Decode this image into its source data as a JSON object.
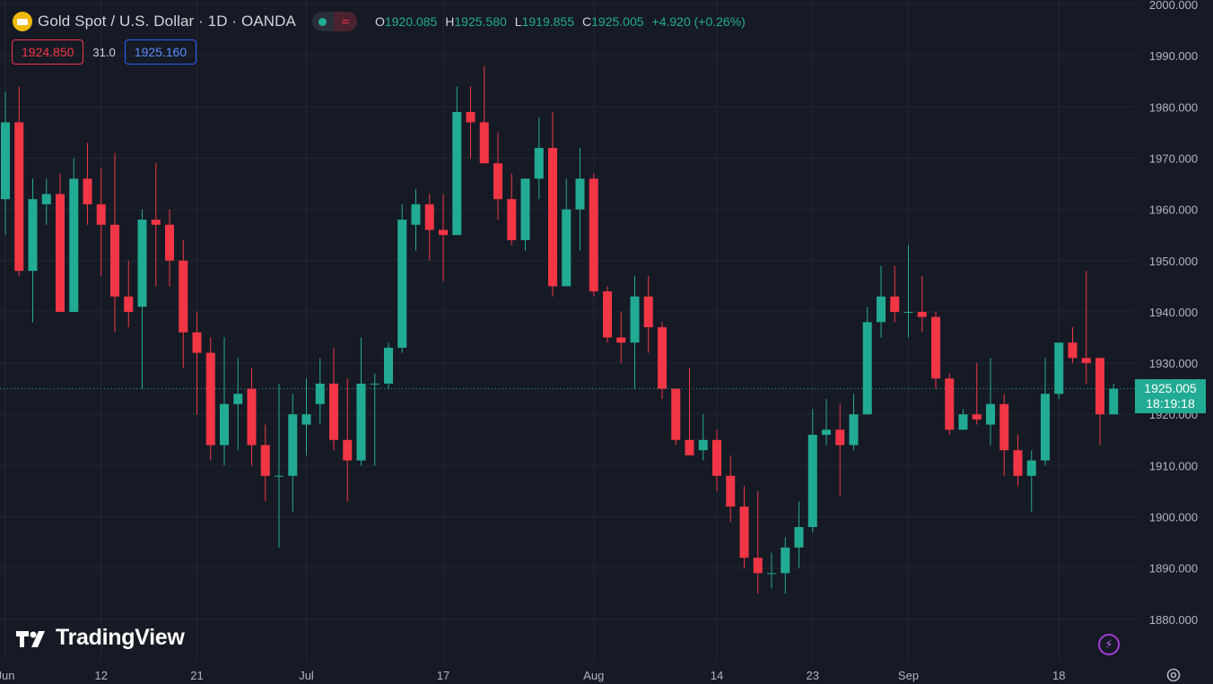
{
  "header": {
    "title": "Gold Spot / U.S. Dollar · 1D · OANDA",
    "symbol_icon": "gold-bar-icon",
    "ohlc": {
      "o_label": "O",
      "o_value": "1920.085",
      "h_label": "H",
      "h_value": "1925.580",
      "l_label": "L",
      "l_value": "1919.855",
      "c_label": "C",
      "c_value": "1925.005",
      "change": "+4.920 (+0.26%)"
    }
  },
  "trade": {
    "sell_price": "1924.850",
    "spread": "31.0",
    "buy_price": "1925.160"
  },
  "current_price": {
    "price": "1925.005",
    "countdown": "18:19:18"
  },
  "logo_text": "TradingView",
  "colors": {
    "background": "#161a25",
    "up": "#22ab94",
    "down": "#f23645",
    "grid": "#232733",
    "axis_text": "#b2b5be"
  },
  "chart_data": {
    "type": "candlestick",
    "symbol": "Gold Spot / U.S. Dollar",
    "interval": "1D",
    "y_axis": {
      "min": 1875,
      "max": 2000,
      "ticks": [
        "2000.000",
        "1990.000",
        "1980.000",
        "1970.000",
        "1960.000",
        "1950.000",
        "1940.000",
        "1930.000",
        "1920.000",
        "1910.000",
        "1900.000",
        "1890.000",
        "1880.000"
      ],
      "tick_values": [
        2000,
        1990,
        1980,
        1970,
        1960,
        1950,
        1940,
        1930,
        1920,
        1910,
        1900,
        1890,
        1880
      ]
    },
    "x_axis": {
      "labels": [
        "Jun",
        "12",
        "21",
        "Jul",
        "17",
        "Aug",
        "14",
        "23",
        "Sep",
        "18"
      ],
      "label_bar_index": [
        0,
        7,
        14,
        22,
        32,
        43,
        52,
        59,
        66,
        77
      ]
    },
    "candles": [
      {
        "o": 1962,
        "h": 1983,
        "l": 1955,
        "c": 1977
      },
      {
        "o": 1977,
        "h": 1984,
        "l": 1947,
        "c": 1948
      },
      {
        "o": 1948,
        "h": 1966,
        "l": 1938,
        "c": 1962
      },
      {
        "o": 1961,
        "h": 1966,
        "l": 1957,
        "c": 1963
      },
      {
        "o": 1963,
        "h": 1967,
        "l": 1940,
        "c": 1940
      },
      {
        "o": 1940,
        "h": 1970,
        "l": 1940,
        "c": 1966
      },
      {
        "o": 1966,
        "h": 1973,
        "l": 1957,
        "c": 1961
      },
      {
        "o": 1961,
        "h": 1968,
        "l": 1947,
        "c": 1957
      },
      {
        "o": 1957,
        "h": 1971,
        "l": 1936,
        "c": 1943
      },
      {
        "o": 1943,
        "h": 1950,
        "l": 1937,
        "c": 1940
      },
      {
        "o": 1941,
        "h": 1960,
        "l": 1925,
        "c": 1958
      },
      {
        "o": 1958,
        "h": 1969,
        "l": 1945,
        "c": 1957
      },
      {
        "o": 1957,
        "h": 1960,
        "l": 1945,
        "c": 1950
      },
      {
        "o": 1950,
        "h": 1954,
        "l": 1929,
        "c": 1936
      },
      {
        "o": 1936,
        "h": 1940,
        "l": 1920,
        "c": 1932
      },
      {
        "o": 1932,
        "h": 1935,
        "l": 1911,
        "c": 1914
      },
      {
        "o": 1914,
        "h": 1935,
        "l": 1910,
        "c": 1922
      },
      {
        "o": 1922,
        "h": 1931,
        "l": 1913,
        "c": 1924
      },
      {
        "o": 1925,
        "h": 1929,
        "l": 1910,
        "c": 1914
      },
      {
        "o": 1914,
        "h": 1918,
        "l": 1903,
        "c": 1908
      },
      {
        "o": 1908,
        "h": 1926,
        "l": 1894,
        "c": 1908
      },
      {
        "o": 1908,
        "h": 1924,
        "l": 1901,
        "c": 1920
      },
      {
        "o": 1918,
        "h": 1927,
        "l": 1912,
        "c": 1920
      },
      {
        "o": 1922,
        "h": 1931,
        "l": 1918,
        "c": 1926
      },
      {
        "o": 1926,
        "h": 1933,
        "l": 1913,
        "c": 1915
      },
      {
        "o": 1915,
        "h": 1927,
        "l": 1903,
        "c": 1911
      },
      {
        "o": 1911,
        "h": 1935,
        "l": 1910,
        "c": 1926
      },
      {
        "o": 1926,
        "h": 1928,
        "l": 1910,
        "c": 1926
      },
      {
        "o": 1926,
        "h": 1934,
        "l": 1925,
        "c": 1933
      },
      {
        "o": 1933,
        "h": 1961,
        "l": 1932,
        "c": 1958
      },
      {
        "o": 1957,
        "h": 1964,
        "l": 1952,
        "c": 1961
      },
      {
        "o": 1961,
        "h": 1963,
        "l": 1950,
        "c": 1956
      },
      {
        "o": 1956,
        "h": 1963,
        "l": 1946,
        "c": 1955
      },
      {
        "o": 1955,
        "h": 1984,
        "l": 1955,
        "c": 1979
      },
      {
        "o": 1979,
        "h": 1984,
        "l": 1970,
        "c": 1977
      },
      {
        "o": 1977,
        "h": 1988,
        "l": 1969,
        "c": 1969
      },
      {
        "o": 1969,
        "h": 1975,
        "l": 1958,
        "c": 1962
      },
      {
        "o": 1962,
        "h": 1967,
        "l": 1953,
        "c": 1954
      },
      {
        "o": 1954,
        "h": 1966,
        "l": 1952,
        "c": 1966
      },
      {
        "o": 1966,
        "h": 1978,
        "l": 1962,
        "c": 1972
      },
      {
        "o": 1972,
        "h": 1979,
        "l": 1943,
        "c": 1945
      },
      {
        "o": 1945,
        "h": 1966,
        "l": 1945,
        "c": 1960
      },
      {
        "o": 1960,
        "h": 1972,
        "l": 1952,
        "c": 1966
      },
      {
        "o": 1966,
        "h": 1967,
        "l": 1943,
        "c": 1944
      },
      {
        "o": 1944,
        "h": 1945,
        "l": 1934,
        "c": 1935
      },
      {
        "o": 1935,
        "h": 1940,
        "l": 1930,
        "c": 1934
      },
      {
        "o": 1934,
        "h": 1947,
        "l": 1925,
        "c": 1943
      },
      {
        "o": 1943,
        "h": 1947,
        "l": 1932,
        "c": 1937
      },
      {
        "o": 1937,
        "h": 1938,
        "l": 1923,
        "c": 1925
      },
      {
        "o": 1925,
        "h": 1925,
        "l": 1914,
        "c": 1915
      },
      {
        "o": 1915,
        "h": 1929,
        "l": 1912,
        "c": 1912
      },
      {
        "o": 1913,
        "h": 1920,
        "l": 1911,
        "c": 1915
      },
      {
        "o": 1915,
        "h": 1917,
        "l": 1905,
        "c": 1908
      },
      {
        "o": 1908,
        "h": 1912,
        "l": 1899,
        "c": 1902
      },
      {
        "o": 1902,
        "h": 1906,
        "l": 1890,
        "c": 1892
      },
      {
        "o": 1892,
        "h": 1905,
        "l": 1885,
        "c": 1889
      },
      {
        "o": 1889,
        "h": 1893,
        "l": 1886,
        "c": 1889
      },
      {
        "o": 1889,
        "h": 1896,
        "l": 1885,
        "c": 1894
      },
      {
        "o": 1894,
        "h": 1903,
        "l": 1890,
        "c": 1898
      },
      {
        "o": 1898,
        "h": 1921,
        "l": 1897,
        "c": 1916
      },
      {
        "o": 1916,
        "h": 1923,
        "l": 1914,
        "c": 1917
      },
      {
        "o": 1917,
        "h": 1922,
        "l": 1904,
        "c": 1914
      },
      {
        "o": 1914,
        "h": 1924,
        "l": 1913,
        "c": 1920
      },
      {
        "o": 1920,
        "h": 1941,
        "l": 1920,
        "c": 1938
      },
      {
        "o": 1938,
        "h": 1949,
        "l": 1935,
        "c": 1943
      },
      {
        "o": 1943,
        "h": 1949,
        "l": 1938,
        "c": 1940
      },
      {
        "o": 1940,
        "h": 1953,
        "l": 1935,
        "c": 1940
      },
      {
        "o": 1940,
        "h": 1947,
        "l": 1936,
        "c": 1939
      },
      {
        "o": 1939,
        "h": 1940,
        "l": 1925,
        "c": 1927
      },
      {
        "o": 1927,
        "h": 1928,
        "l": 1916,
        "c": 1917
      },
      {
        "o": 1917,
        "h": 1921,
        "l": 1917,
        "c": 1920
      },
      {
        "o": 1920,
        "h": 1930,
        "l": 1918,
        "c": 1919
      },
      {
        "o": 1918,
        "h": 1931,
        "l": 1914,
        "c": 1922
      },
      {
        "o": 1922,
        "h": 1924,
        "l": 1908,
        "c": 1913
      },
      {
        "o": 1913,
        "h": 1916,
        "l": 1906,
        "c": 1908
      },
      {
        "o": 1908,
        "h": 1913,
        "l": 1901,
        "c": 1911
      },
      {
        "o": 1911,
        "h": 1931,
        "l": 1910,
        "c": 1924
      },
      {
        "o": 1924,
        "h": 1934,
        "l": 1923,
        "c": 1934
      },
      {
        "o": 1934,
        "h": 1937,
        "l": 1930,
        "c": 1931
      },
      {
        "o": 1931,
        "h": 1948,
        "l": 1926,
        "c": 1930
      },
      {
        "o": 1931,
        "h": 1931,
        "l": 1914,
        "c": 1920
      },
      {
        "o": 1920,
        "h": 1926,
        "l": 1920,
        "c": 1925
      }
    ]
  }
}
